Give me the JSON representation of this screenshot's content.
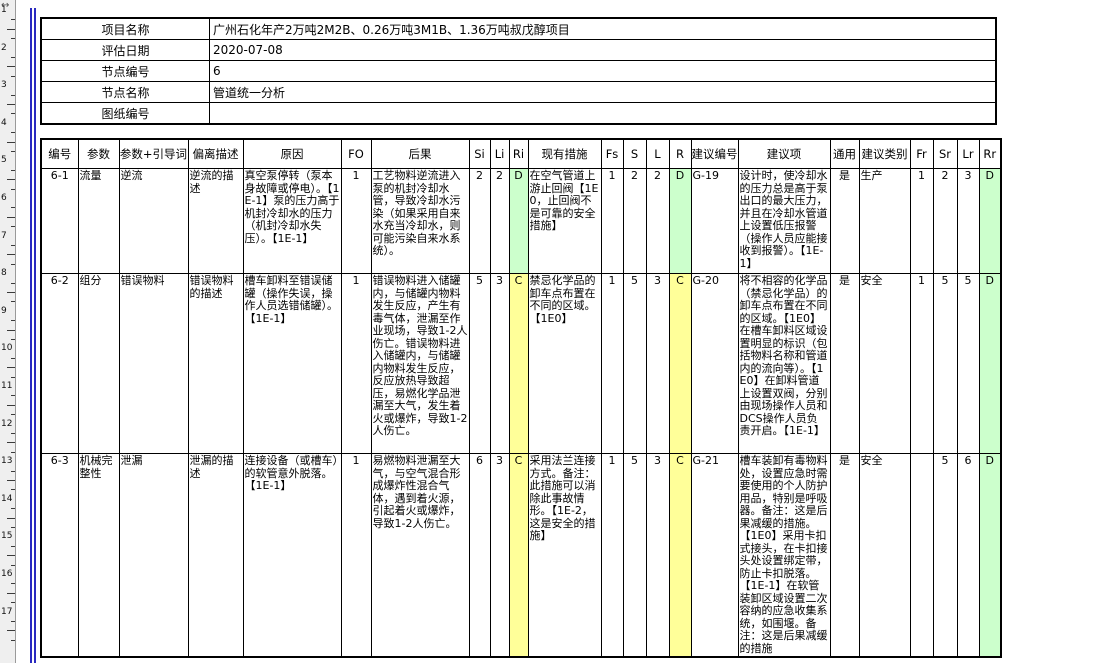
{
  "colors": {
    "risk_green": "#ccffcc",
    "risk_yellow": "#ffff99",
    "page_line_blue": "#2a2ac0"
  },
  "ruler": {
    "resize_icon": "↔",
    "numbers": [
      1,
      2,
      3,
      4,
      5,
      6,
      7,
      8,
      9,
      10,
      11,
      12,
      13,
      14,
      15,
      16,
      17
    ]
  },
  "info_table": {
    "rows": [
      {
        "label": "项目名称",
        "value": "广州石化年产2万吨2M2B、0.26万吨3M1B、1.36万吨叔戊醇项目"
      },
      {
        "label": "评估日期",
        "value": "2020-07-08"
      },
      {
        "label": "节点编号",
        "value": "6"
      },
      {
        "label": "节点名称",
        "value": "管道统一分析"
      },
      {
        "label": "图纸编号",
        "value": ""
      }
    ]
  },
  "hazop_table": {
    "columns": [
      {
        "key": "num",
        "label": "编号"
      },
      {
        "key": "param",
        "label": "参数"
      },
      {
        "key": "param_guide",
        "label": "参数+引导词"
      },
      {
        "key": "deviation",
        "label": "偏离描述"
      },
      {
        "key": "cause",
        "label": "原因"
      },
      {
        "key": "fo",
        "label": "FO"
      },
      {
        "key": "consequence",
        "label": "后果"
      },
      {
        "key": "si",
        "label": "Si"
      },
      {
        "key": "li",
        "label": "Li"
      },
      {
        "key": "ri",
        "label": "Ri"
      },
      {
        "key": "measures",
        "label": "现有措施"
      },
      {
        "key": "fs",
        "label": "Fs"
      },
      {
        "key": "s",
        "label": "S"
      },
      {
        "key": "l",
        "label": "L"
      },
      {
        "key": "r",
        "label": "R"
      },
      {
        "key": "rec_no",
        "label": "建议编号"
      },
      {
        "key": "recommendation",
        "label": "建议项"
      },
      {
        "key": "common",
        "label": "通用"
      },
      {
        "key": "rec_category",
        "label": "建议类别"
      },
      {
        "key": "fr",
        "label": "Fr"
      },
      {
        "key": "sr",
        "label": "Sr"
      },
      {
        "key": "lr",
        "label": "Lr"
      },
      {
        "key": "rr",
        "label": "Rr"
      }
    ],
    "rows": [
      {
        "num": "6-1",
        "param": "流量",
        "param_guide": "逆流",
        "deviation": "逆流的描述",
        "cause": "真空泵停转（泵本身故障或停电）。【1E-1】泵的压力高于机封冷却水的压力（机封冷却水失压）。【1E-1】",
        "fo": "1",
        "consequence": "工艺物料逆流进入泵的机封冷却水管，导致冷却水污染（如果采用自来水充当冷却水，则可能污染自来水系统）。",
        "si": "2",
        "li": "2",
        "ri": "D",
        "measures": "在空气管道上游止回阀【1E0，止回阀不是可靠的安全措施】",
        "fs": "1",
        "s": "2",
        "l": "2",
        "r": "D",
        "rec_no": "G-19",
        "recommendation": "设计时，使冷却水的压力总是高于泵出口的最大压力，并且在冷却水管道上设置低压报警（操作人员应能接收到报警）。【1E-1】",
        "common": "是",
        "rec_category": "生产",
        "fr": "1",
        "sr": "2",
        "lr": "3",
        "rr": "D"
      },
      {
        "num": "6-2",
        "param": "组分",
        "param_guide": "错误物料",
        "deviation": "错误物料的描述",
        "cause": "槽车卸料至错误储罐（操作失误，操作人员选错储罐）。【1E-1】",
        "fo": "1",
        "consequence": "错误物料进入储罐内，与储罐内物料发生反应，产生有毒气体，泄漏至作业现场，导致1-2人伤亡。错误物料进入储罐内，与储罐内物料发生反应，反应放热导致超压，易燃化学品泄漏至大气，发生着火或爆炸，导致1-2人伤亡。",
        "si": "5",
        "li": "3",
        "ri": "C",
        "measures": "禁忌化学品的卸车点布置在不同的区域。【1E0】",
        "fs": "1",
        "s": "5",
        "l": "3",
        "r": "C",
        "rec_no": "G-20",
        "recommendation": "将不相容的化学品（禁忌化学品）的卸车点布置在不同的区域。【1E0】在槽车卸料区域设置明显的标识（包括物料名称和管道内的流向等）。【1E0】在卸料管道上设置双阀，分别由现场操作人员和DCS操作人员负责开启。【1E-1】",
        "common": "是",
        "rec_category": "安全",
        "fr": "1",
        "sr": "5",
        "lr": "5",
        "rr": "D"
      },
      {
        "num": "6-3",
        "param": "机械完整性",
        "param_guide": "泄漏",
        "deviation": "泄漏的描述",
        "cause": "连接设备（或槽车）的软管意外脱落。【1E-1】",
        "fo": "1",
        "consequence": "易燃物料泄漏至大气，与空气混合形成爆炸性混合气体，遇到着火源，引起着火或爆炸，导致1-2人伤亡。",
        "si": "6",
        "li": "3",
        "ri": "C",
        "measures": "采用法兰连接方式。备注：此措施可以消除此事故情形。【1E-2，这是安全的措施】",
        "fs": "1",
        "s": "5",
        "l": "3",
        "r": "C",
        "rec_no": "G-21",
        "recommendation": "槽车装卸有毒物料处，设置应急时需要使用的个人防护用品，特别是呼吸器。备注：这是后果减缓的措施。【1E0】采用卡扣式接头，在卡扣接头处设置绑定带，防止卡扣脱落。【1E-1】在软管装卸区域设置二次容纳的应急收集系统，如围堰。备注：这是后果减缓的措施",
        "common": "是",
        "rec_category": "安全",
        "fr": "",
        "sr": "5",
        "lr": "6",
        "rr": "D"
      }
    ]
  }
}
